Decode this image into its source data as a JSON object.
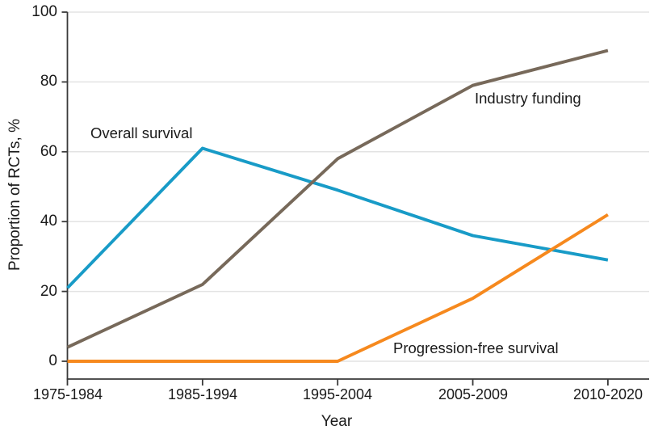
{
  "chart_data": {
    "type": "line",
    "title": "",
    "xlabel": "Year",
    "ylabel": "Proportion of RCTs, %",
    "categories": [
      "1975-1984",
      "1985-1994",
      "1995-2004",
      "2005-2009",
      "2010-2020"
    ],
    "series": [
      {
        "name": "Overall survival",
        "color": "#189BC7",
        "values": [
          21,
          61,
          49,
          36,
          29
        ]
      },
      {
        "name": "Industry funding",
        "color": "#77695A",
        "values": [
          4,
          22,
          58,
          79,
          89
        ]
      },
      {
        "name": "Progression-free survival",
        "color": "#F6891E",
        "values": [
          0,
          0,
          0,
          18,
          42
        ]
      }
    ],
    "ylim": [
      0,
      100
    ],
    "yticks": [
      0,
      20,
      40,
      60,
      80,
      100
    ],
    "grid": "horizontal",
    "legend_position": "inline-annotations",
    "colors": {
      "grid": "#e3e3e3",
      "axis": "#3a3a3a",
      "text": "#1a1a1a",
      "background": "#ffffff"
    }
  }
}
